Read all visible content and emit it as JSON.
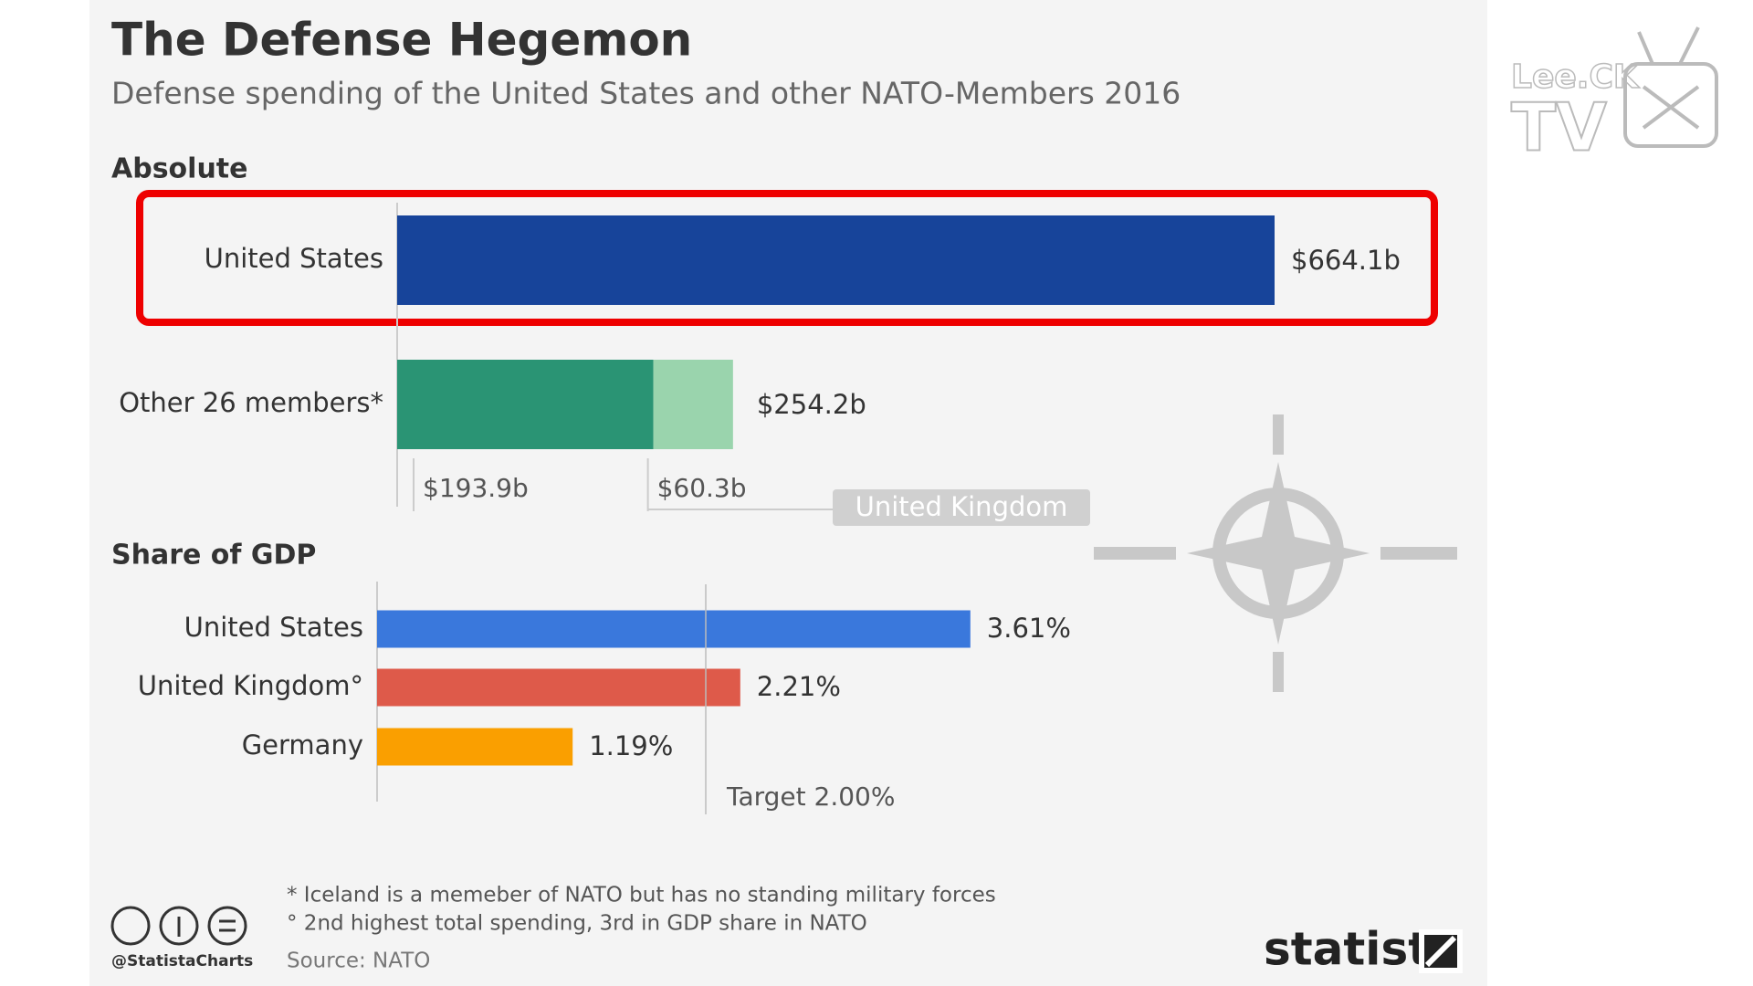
{
  "title": "The Defense Hegemon",
  "subtitle": "Defense spending of the United States and other NATO-Members 2016",
  "chart_data": [
    {
      "type": "stacked-hbar",
      "title": "Absolute",
      "categories": [
        "United States",
        "Other 26 members*"
      ],
      "bars": [
        {
          "segments": [
            {
              "value": 664.1,
              "label": "$664.1b",
              "color": "#17449a"
            }
          ]
        },
        {
          "total": 254.2,
          "total_label": "$254.2b",
          "segments": [
            {
              "value": 193.9,
              "label": "$193.9b",
              "color": "#2a9474"
            },
            {
              "value": 60.3,
              "label": "$60.3b",
              "name": "United Kingdom",
              "color": "#9ad4ad"
            }
          ]
        }
      ]
    },
    {
      "type": "hbar",
      "title": "Share of GDP",
      "categories": [
        "United States",
        "United Kingdom°",
        "Germany"
      ],
      "values": [
        3.61,
        2.21,
        1.19
      ],
      "value_labels": [
        "3.61%",
        "2.21%",
        "1.19%"
      ],
      "colors": [
        "#3a78dc",
        "#de5a4a",
        "#fa9f00"
      ],
      "target": {
        "value": 2.0,
        "label": "Target 2.00%"
      }
    }
  ],
  "notes": [
    "* Iceland is a memeber of NATO but has no standing military forces",
    "° 2nd highest total spending, 3rd in GDP share in NATO"
  ],
  "source": "Source: NATO",
  "handle": "@StatistaCharts",
  "brand": "statista",
  "watermark": {
    "line1": "Lee.CK",
    "line2": "TV"
  }
}
